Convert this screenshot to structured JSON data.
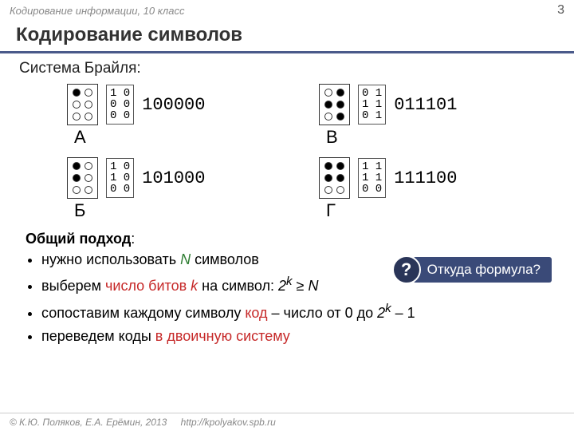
{
  "colors": {
    "title_underline": "#4a5a8a",
    "callout_bg": "#3a4a78",
    "callout_badge_bg": "#2a3558"
  },
  "header": {
    "breadcrumb": "Кодирование информации, 10 класс",
    "page_number": "3"
  },
  "title": "Кодирование символов",
  "subtitle": "Система Брайля:",
  "braille": [
    {
      "letter": "А",
      "dots": [
        1,
        0,
        0,
        0,
        0,
        0
      ],
      "bits_text": "1 0\n0 0\n0 0",
      "code": "100000"
    },
    {
      "letter": "В",
      "dots": [
        0,
        1,
        1,
        1,
        0,
        1
      ],
      "bits_text": "0 1\n1 1\n0 1",
      "code": "011101"
    },
    {
      "letter": "Б",
      "dots": [
        1,
        0,
        1,
        0,
        0,
        0
      ],
      "bits_text": "1 0\n1 0\n0 0",
      "code": "101000"
    },
    {
      "letter": "Г",
      "dots": [
        1,
        1,
        1,
        1,
        0,
        0
      ],
      "bits_text": "1 1\n1 1\n0 0",
      "code": "111100"
    }
  ],
  "section_heading": {
    "bold": "Общий подход",
    "rest": ":"
  },
  "bullets": [
    {
      "html": "нужно использовать <span class='ital-green'>N</span> символов"
    },
    {
      "html": "выберем <span class='red'>число битов <span class='ital-red'>k</span></span> на символ: <span class='ital-black'>2<sup>k</sup></span> ≥ <span class='ital-black'>N</span>"
    },
    {
      "html": "сопоставим каждому символу <span class='red'>код</span> – число от 0 до <span class='ital-black'>2<sup>k</sup></span> – 1"
    },
    {
      "html": "переведем коды <span class='red'>в двоичную систему</span>"
    }
  ],
  "callout": {
    "badge": "?",
    "text": "Откуда формула?"
  },
  "footer": {
    "copyright": "© К.Ю. Поляков, Е.А. Ерёмин, 2013",
    "url": "http://kpolyakov.spb.ru"
  }
}
